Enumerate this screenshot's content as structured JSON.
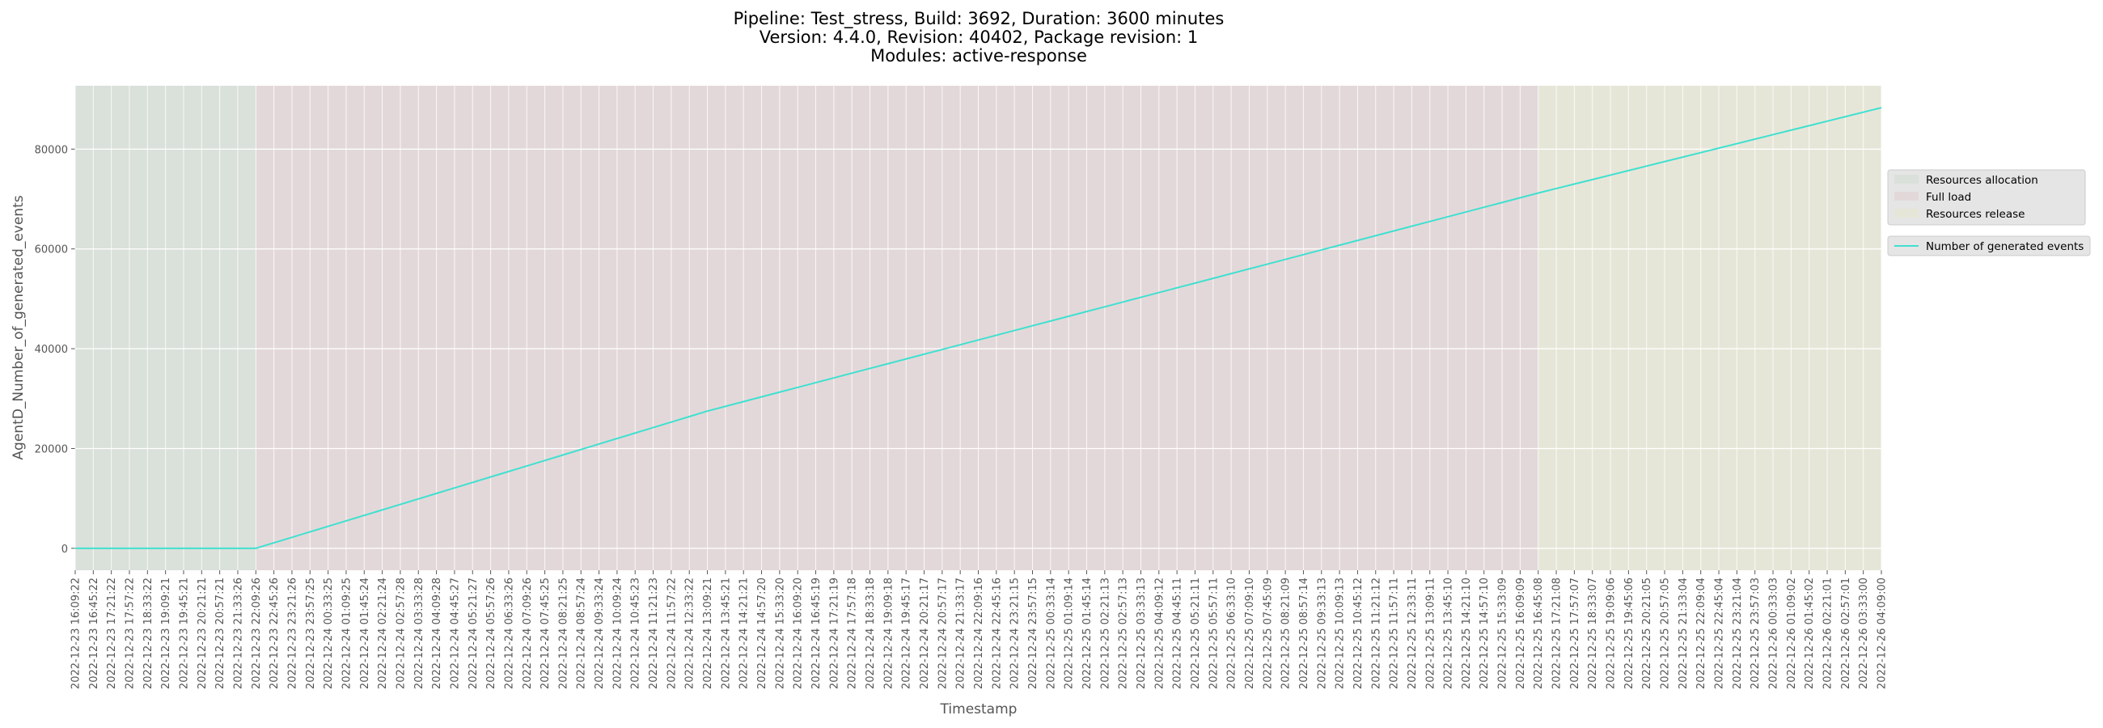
{
  "chart_data": {
    "type": "line",
    "title": [
      "Pipeline: Test_stress, Build: 3692, Duration: 3600 minutes",
      "Version: 4.4.0, Revision: 40402, Package revision: 1",
      "Modules: active-response"
    ],
    "x_label": "Timestamp",
    "y_label": "AgentD_Number_of_generated_events",
    "categories": [
      "2022-12-23 16:09:22",
      "2022-12-23 16:45:22",
      "2022-12-23 17:21:22",
      "2022-12-23 17:57:22",
      "2022-12-23 18:33:22",
      "2022-12-23 19:09:21",
      "2022-12-23 19:45:21",
      "2022-12-23 20:21:21",
      "2022-12-23 20:57:21",
      "2022-12-23 21:33:26",
      "2022-12-23 22:09:26",
      "2022-12-23 22:45:26",
      "2022-12-23 23:21:26",
      "2022-12-23 23:57:25",
      "2022-12-24 00:33:25",
      "2022-12-24 01:09:25",
      "2022-12-24 01:45:24",
      "2022-12-24 02:21:24",
      "2022-12-24 02:57:28",
      "2022-12-24 03:33:28",
      "2022-12-24 04:09:28",
      "2022-12-24 04:45:27",
      "2022-12-24 05:21:27",
      "2022-12-24 05:57:26",
      "2022-12-24 06:33:26",
      "2022-12-24 07:09:26",
      "2022-12-24 07:45:25",
      "2022-12-24 08:21:25",
      "2022-12-24 08:57:24",
      "2022-12-24 09:33:24",
      "2022-12-24 10:09:24",
      "2022-12-24 10:45:23",
      "2022-12-24 11:21:23",
      "2022-12-24 11:57:22",
      "2022-12-24 12:33:22",
      "2022-12-24 13:09:21",
      "2022-12-24 13:45:21",
      "2022-12-24 14:21:21",
      "2022-12-24 14:57:20",
      "2022-12-24 15:33:20",
      "2022-12-24 16:09:20",
      "2022-12-24 16:45:19",
      "2022-12-24 17:21:19",
      "2022-12-24 17:57:18",
      "2022-12-24 18:33:18",
      "2022-12-24 19:09:18",
      "2022-12-24 19:45:17",
      "2022-12-24 20:21:17",
      "2022-12-24 20:57:17",
      "2022-12-24 21:33:17",
      "2022-12-24 22:09:16",
      "2022-12-24 22:45:16",
      "2022-12-24 23:21:15",
      "2022-12-24 23:57:15",
      "2022-12-25 00:33:14",
      "2022-12-25 01:09:14",
      "2022-12-25 01:45:14",
      "2022-12-25 02:21:13",
      "2022-12-25 02:57:13",
      "2022-12-25 03:33:13",
      "2022-12-25 04:09:12",
      "2022-12-25 04:45:11",
      "2022-12-25 05:21:11",
      "2022-12-25 05:57:11",
      "2022-12-25 06:33:10",
      "2022-12-25 07:09:10",
      "2022-12-25 07:45:09",
      "2022-12-25 08:21:09",
      "2022-12-25 08:57:14",
      "2022-12-25 09:33:13",
      "2022-12-25 10:09:13",
      "2022-12-25 10:45:12",
      "2022-12-25 11:21:12",
      "2022-12-25 11:57:11",
      "2022-12-25 12:33:11",
      "2022-12-25 13:09:11",
      "2022-12-25 13:45:10",
      "2022-12-25 14:21:10",
      "2022-12-25 14:57:10",
      "2022-12-25 15:33:09",
      "2022-12-25 16:09:09",
      "2022-12-25 16:45:08",
      "2022-12-25 17:21:08",
      "2022-12-25 17:57:07",
      "2022-12-25 18:33:07",
      "2022-12-25 19:09:06",
      "2022-12-25 19:45:06",
      "2022-12-25 20:21:05",
      "2022-12-25 20:57:05",
      "2022-12-25 21:33:04",
      "2022-12-25 22:09:04",
      "2022-12-25 22:45:04",
      "2022-12-25 23:21:04",
      "2022-12-25 23:57:03",
      "2022-12-26 00:33:03",
      "2022-12-26 01:09:02",
      "2022-12-26 01:45:02",
      "2022-12-26 02:21:01",
      "2022-12-26 02:57:01",
      "2022-12-26 03:33:00",
      "2022-12-26 04:09:00"
    ],
    "series": [
      {
        "name": "Number of generated events",
        "color": "#40e0d0",
        "values": [
          0,
          0,
          0,
          0,
          0,
          0,
          0,
          0,
          0,
          0,
          0,
          1100,
          2200,
          3300,
          4400,
          5500,
          6600,
          7700,
          8800,
          9900,
          11000,
          12100,
          13200,
          14300,
          15400,
          16500,
          17600,
          18700,
          19800,
          20900,
          22000,
          23100,
          24200,
          25300,
          26400,
          27500,
          28450,
          29400,
          30350,
          31300,
          32250,
          33200,
          34150,
          35100,
          36050,
          37000,
          37950,
          38900,
          39850,
          40800,
          41750,
          42700,
          43650,
          44600,
          45550,
          46500,
          47450,
          48400,
          49350,
          50300,
          51250,
          52200,
          53150,
          54100,
          55050,
          56000,
          56950,
          57900,
          58850,
          59800,
          60750,
          61700,
          62650,
          63600,
          64550,
          65500,
          66450,
          67400,
          68350,
          69300,
          70250,
          71200,
          72100,
          73000,
          73900,
          74800,
          75700,
          76600,
          77500,
          78400,
          79300,
          80200,
          81100,
          82000,
          82900,
          83800,
          84700,
          85600,
          86500,
          87400,
          88300
        ]
      }
    ],
    "regions": [
      {
        "name": "Resources allocation",
        "color": "#dae0da",
        "start": "2022-12-23 16:09:22",
        "end": "2022-12-23 22:09:26"
      },
      {
        "name": "Full load",
        "color": "#e3d8d9",
        "start": "2022-12-23 22:09:26",
        "end": "2022-12-25 16:45:08"
      },
      {
        "name": "Resources release",
        "color": "#e6e6d8",
        "start": "2022-12-25 16:45:08",
        "end": "2022-12-26 04:09:00"
      }
    ],
    "ylim": [
      -4400,
      92700
    ],
    "yticks": [
      0,
      20000,
      40000,
      60000,
      80000
    ],
    "grid": true
  }
}
